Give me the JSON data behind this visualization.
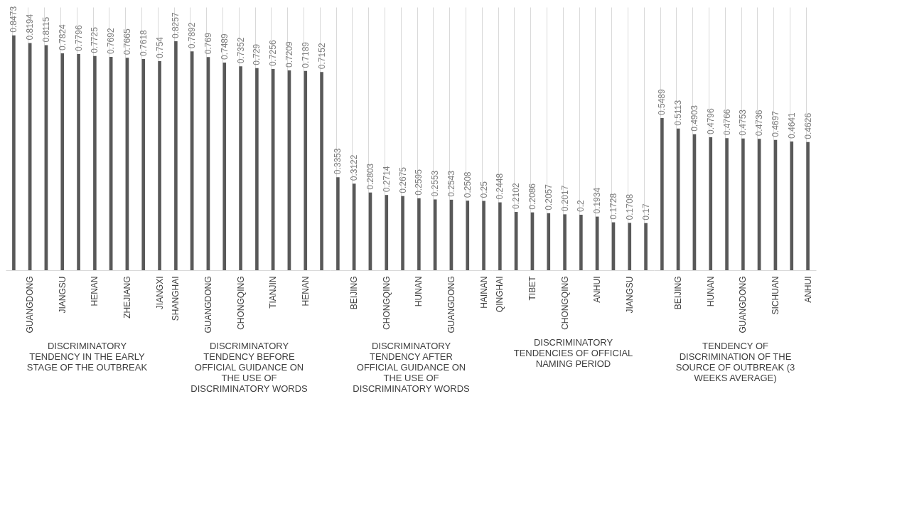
{
  "chart_data": [
    {
      "type": "bar",
      "xlabel": "DISCRIMINATORY TENDENCY IN THE EARLY STAGE OF THE OUTBREAK",
      "categories": [
        null,
        "GUANGDONG",
        null,
        "JIANGSU",
        null,
        "HENAN",
        null,
        "ZHEJIANG",
        null,
        "JIANGXI"
      ],
      "values": [
        0.8473,
        0.8194,
        0.8115,
        0.7824,
        0.7796,
        0.7725,
        0.7692,
        0.7665,
        0.7618,
        0.754
      ],
      "color": "#595959",
      "data_labels": true,
      "grid": "x"
    },
    {
      "type": "bar",
      "xlabel": "DISCRIMINATORY TENDENCY BEFORE OFFICIAL GUIDANCE ON THE USE OF DISCRIMINATORY WORDS",
      "categories": [
        "SHANGHAI",
        null,
        "GUANGDONG",
        null,
        "CHONGQING",
        null,
        "TIANJIN",
        null,
        "HENAN",
        null
      ],
      "values": [
        0.8257,
        0.7892,
        0.769,
        0.7489,
        0.7352,
        0.729,
        0.7256,
        0.7209,
        0.7189,
        0.7152
      ],
      "color": "#595959",
      "data_labels": true,
      "grid": "x"
    },
    {
      "type": "bar",
      "xlabel": "DISCRIMINATORY TENDENCY AFTER OFFICIAL GUIDANCE ON THE USE OF DISCRIMINATORY WORDS",
      "categories": [
        null,
        "BEIJING",
        null,
        "CHONGQING",
        null,
        "HUNAN",
        null,
        "GUANGDONG",
        null,
        "HAINAN"
      ],
      "values": [
        0.3353,
        0.3122,
        0.2803,
        0.2714,
        0.2675,
        0.2595,
        0.2553,
        0.2543,
        0.2508,
        0.25
      ],
      "color": "#595959",
      "data_labels": true,
      "grid": "x"
    },
    {
      "type": "bar",
      "xlabel": "DISCRIMINATORY TENDENCIES OF OFFICIAL NAMING PERIOD",
      "categories": [
        "QINGHAI",
        null,
        "TIBET",
        null,
        "CHONGQING",
        null,
        "ANHUI",
        null,
        "JIANGSU",
        null
      ],
      "values": [
        0.2448,
        0.2102,
        0.2086,
        0.2057,
        0.2017,
        0.2,
        0.1934,
        0.1728,
        0.1708,
        0.17
      ],
      "color": "#595959",
      "data_labels": true,
      "grid": "x"
    },
    {
      "type": "bar",
      "xlabel": "TENDENCY OF DISCRIMINATION OF THE SOURCE OF OUTBREAK (3 WEEKS AVERAGE)",
      "categories": [
        null,
        "BEIJING",
        null,
        "HUNAN",
        null,
        "GUANGDONG",
        null,
        "SICHUAN",
        null,
        "ANHUI"
      ],
      "values": [
        0.5489,
        0.5113,
        0.4903,
        0.4796,
        0.4766,
        0.4753,
        0.4736,
        0.4697,
        0.4641,
        0.4626
      ],
      "color": "#595959",
      "data_labels": true,
      "grid": "x"
    }
  ]
}
